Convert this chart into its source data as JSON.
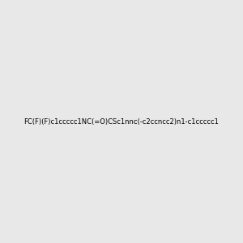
{
  "smiles": "FC(F)(F)c1ccccc1NC(=O)CSc1nnc(-c2ccncc2)n1-c1ccccc1",
  "title": "",
  "background_color": "#e8e8e8",
  "figsize": [
    3.0,
    3.0
  ],
  "dpi": 100
}
